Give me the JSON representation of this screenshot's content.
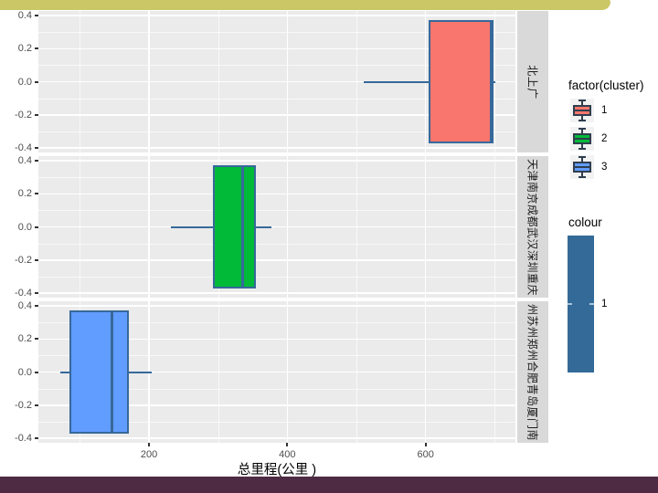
{
  "accent": {
    "top_bar_color": "#CBC767",
    "bottom_bar_color": "#4E2B43"
  },
  "chart_data": {
    "type": "boxplot",
    "orientation": "horizontal",
    "xlabel": "总里程(公里 )",
    "x_ticks": [
      200,
      400,
      600
    ],
    "xlim": [
      40,
      730
    ],
    "panel_ylim": [
      -0.4,
      0.4
    ],
    "panel_y_ticks": [
      "0.4",
      "0.2",
      "0.0",
      "-0.2",
      "-0.4"
    ],
    "box_half_height": 0.375,
    "whisker_y": 0,
    "grid": true,
    "panel_bg": "#EBEBEB",
    "strip_bg": "#D9D9D9",
    "grid_color": "#FFFFFF",
    "stroke_color": "#37699B",
    "facets": [
      {
        "strip_label": "北上广",
        "cluster": "1",
        "fill": "#F8766D",
        "stats": {
          "whisker_low": 510,
          "q1": 604,
          "median": 695,
          "q3": 698,
          "whisker_high": 701
        }
      },
      {
        "strip_label": "天津南京成都武汉深圳重庆",
        "cluster": "2",
        "fill": "#00BA38",
        "stats": {
          "whisker_low": 232,
          "q1": 293,
          "median": 335,
          "q3": 354,
          "whisker_high": 377
        }
      },
      {
        "strip_label": "州苏州郑州合肥青岛厦门南",
        "cluster": "3",
        "fill": "#619CFF",
        "stats": {
          "whisker_low": 72,
          "q1": 85,
          "median": 146,
          "q3": 171,
          "whisker_high": 204
        }
      }
    ]
  },
  "legends": {
    "cluster": {
      "title": "factor(cluster)",
      "key_bg": "#F2F2F2",
      "key_stroke": "#2F3E4E",
      "items": [
        {
          "label": "1",
          "fill": "#F8766D"
        },
        {
          "label": "2",
          "fill": "#00BA38"
        },
        {
          "label": "3",
          "fill": "#619CFF"
        }
      ]
    },
    "colour": {
      "title": "colour",
      "bar_color": "#336A98",
      "tick_label": "1"
    }
  }
}
